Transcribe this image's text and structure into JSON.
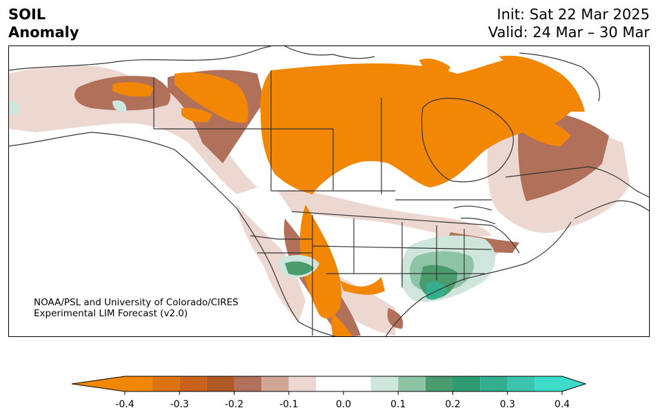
{
  "header": {
    "title_line1": "SOIL",
    "title_line2": "Anomaly",
    "init": "Init: Sat 22 Mar 2025",
    "valid": "Valid: 24 Mar – 30 Mar"
  },
  "credit": {
    "line1": "NOAA/PSL and University of Colorado/CIRES",
    "line2": "Experimental LIM Forecast (v2.0)"
  },
  "colorbar": {
    "levels": [
      -0.4,
      -0.35,
      -0.3,
      -0.25,
      -0.2,
      -0.15,
      -0.1,
      -0.05,
      0.05,
      0.1,
      0.15,
      0.2,
      0.25,
      0.3,
      0.35,
      0.4
    ],
    "colors": [
      "#f28705",
      "#dc7210",
      "#c9621d",
      "#b05a28",
      "#b0705a",
      "#d0a696",
      "#ecd8d0",
      "#ffffff",
      "#cfe6dc",
      "#8ec4a6",
      "#4a9c6e",
      "#2e9a70",
      "#35ae8f",
      "#3cc4ae",
      "#3ddcc8"
    ],
    "under_color": "#f28705",
    "over_color": "#3ddcc8",
    "tick_labels": [
      "-0.4",
      "-0.3",
      "-0.2",
      "-0.1",
      "0.0",
      "0.1",
      "0.2",
      "0.3",
      "0.4"
    ]
  },
  "map": {
    "region": "North America",
    "land_color": "#ffffff",
    "border_color": "#333333"
  }
}
